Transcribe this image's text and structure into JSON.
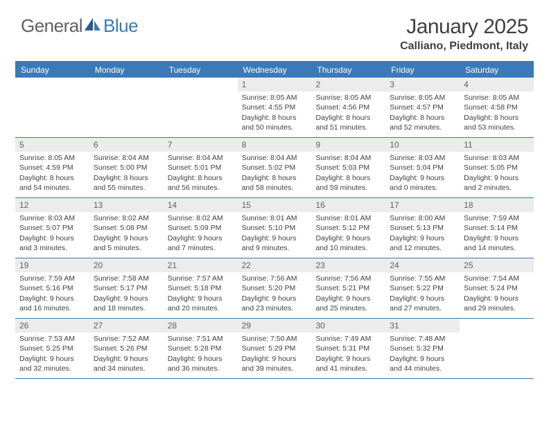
{
  "logo": {
    "text1": "General",
    "text2": "Blue"
  },
  "title": "January 2025",
  "location": "Calliano, Piedmont, Italy",
  "colors": {
    "accent": "#3a7ab8",
    "header_bg": "#3a7ab8",
    "header_text": "#ffffff",
    "daynum_bg": "#ececec",
    "text": "#404040",
    "logo_gray": "#606060",
    "logo_blue": "#3a7ab8",
    "background": "#ffffff"
  },
  "day_names": [
    "Sunday",
    "Monday",
    "Tuesday",
    "Wednesday",
    "Thursday",
    "Friday",
    "Saturday"
  ],
  "weeks": [
    [
      {
        "day": "",
        "sunrise": "",
        "sunset": "",
        "daylight1": "",
        "daylight2": ""
      },
      {
        "day": "",
        "sunrise": "",
        "sunset": "",
        "daylight1": "",
        "daylight2": ""
      },
      {
        "day": "",
        "sunrise": "",
        "sunset": "",
        "daylight1": "",
        "daylight2": ""
      },
      {
        "day": "1",
        "sunrise": "Sunrise: 8:05 AM",
        "sunset": "Sunset: 4:55 PM",
        "daylight1": "Daylight: 8 hours",
        "daylight2": "and 50 minutes."
      },
      {
        "day": "2",
        "sunrise": "Sunrise: 8:05 AM",
        "sunset": "Sunset: 4:56 PM",
        "daylight1": "Daylight: 8 hours",
        "daylight2": "and 51 minutes."
      },
      {
        "day": "3",
        "sunrise": "Sunrise: 8:05 AM",
        "sunset": "Sunset: 4:57 PM",
        "daylight1": "Daylight: 8 hours",
        "daylight2": "and 52 minutes."
      },
      {
        "day": "4",
        "sunrise": "Sunrise: 8:05 AM",
        "sunset": "Sunset: 4:58 PM",
        "daylight1": "Daylight: 8 hours",
        "daylight2": "and 53 minutes."
      }
    ],
    [
      {
        "day": "5",
        "sunrise": "Sunrise: 8:05 AM",
        "sunset": "Sunset: 4:59 PM",
        "daylight1": "Daylight: 8 hours",
        "daylight2": "and 54 minutes."
      },
      {
        "day": "6",
        "sunrise": "Sunrise: 8:04 AM",
        "sunset": "Sunset: 5:00 PM",
        "daylight1": "Daylight: 8 hours",
        "daylight2": "and 55 minutes."
      },
      {
        "day": "7",
        "sunrise": "Sunrise: 8:04 AM",
        "sunset": "Sunset: 5:01 PM",
        "daylight1": "Daylight: 8 hours",
        "daylight2": "and 56 minutes."
      },
      {
        "day": "8",
        "sunrise": "Sunrise: 8:04 AM",
        "sunset": "Sunset: 5:02 PM",
        "daylight1": "Daylight: 8 hours",
        "daylight2": "and 58 minutes."
      },
      {
        "day": "9",
        "sunrise": "Sunrise: 8:04 AM",
        "sunset": "Sunset: 5:03 PM",
        "daylight1": "Daylight: 8 hours",
        "daylight2": "and 59 minutes."
      },
      {
        "day": "10",
        "sunrise": "Sunrise: 8:03 AM",
        "sunset": "Sunset: 5:04 PM",
        "daylight1": "Daylight: 9 hours",
        "daylight2": "and 0 minutes."
      },
      {
        "day": "11",
        "sunrise": "Sunrise: 8:03 AM",
        "sunset": "Sunset: 5:05 PM",
        "daylight1": "Daylight: 9 hours",
        "daylight2": "and 2 minutes."
      }
    ],
    [
      {
        "day": "12",
        "sunrise": "Sunrise: 8:03 AM",
        "sunset": "Sunset: 5:07 PM",
        "daylight1": "Daylight: 9 hours",
        "daylight2": "and 3 minutes."
      },
      {
        "day": "13",
        "sunrise": "Sunrise: 8:02 AM",
        "sunset": "Sunset: 5:08 PM",
        "daylight1": "Daylight: 9 hours",
        "daylight2": "and 5 minutes."
      },
      {
        "day": "14",
        "sunrise": "Sunrise: 8:02 AM",
        "sunset": "Sunset: 5:09 PM",
        "daylight1": "Daylight: 9 hours",
        "daylight2": "and 7 minutes."
      },
      {
        "day": "15",
        "sunrise": "Sunrise: 8:01 AM",
        "sunset": "Sunset: 5:10 PM",
        "daylight1": "Daylight: 9 hours",
        "daylight2": "and 9 minutes."
      },
      {
        "day": "16",
        "sunrise": "Sunrise: 8:01 AM",
        "sunset": "Sunset: 5:12 PM",
        "daylight1": "Daylight: 9 hours",
        "daylight2": "and 10 minutes."
      },
      {
        "day": "17",
        "sunrise": "Sunrise: 8:00 AM",
        "sunset": "Sunset: 5:13 PM",
        "daylight1": "Daylight: 9 hours",
        "daylight2": "and 12 minutes."
      },
      {
        "day": "18",
        "sunrise": "Sunrise: 7:59 AM",
        "sunset": "Sunset: 5:14 PM",
        "daylight1": "Daylight: 9 hours",
        "daylight2": "and 14 minutes."
      }
    ],
    [
      {
        "day": "19",
        "sunrise": "Sunrise: 7:59 AM",
        "sunset": "Sunset: 5:16 PM",
        "daylight1": "Daylight: 9 hours",
        "daylight2": "and 16 minutes."
      },
      {
        "day": "20",
        "sunrise": "Sunrise: 7:58 AM",
        "sunset": "Sunset: 5:17 PM",
        "daylight1": "Daylight: 9 hours",
        "daylight2": "and 18 minutes."
      },
      {
        "day": "21",
        "sunrise": "Sunrise: 7:57 AM",
        "sunset": "Sunset: 5:18 PM",
        "daylight1": "Daylight: 9 hours",
        "daylight2": "and 20 minutes."
      },
      {
        "day": "22",
        "sunrise": "Sunrise: 7:56 AM",
        "sunset": "Sunset: 5:20 PM",
        "daylight1": "Daylight: 9 hours",
        "daylight2": "and 23 minutes."
      },
      {
        "day": "23",
        "sunrise": "Sunrise: 7:56 AM",
        "sunset": "Sunset: 5:21 PM",
        "daylight1": "Daylight: 9 hours",
        "daylight2": "and 25 minutes."
      },
      {
        "day": "24",
        "sunrise": "Sunrise: 7:55 AM",
        "sunset": "Sunset: 5:22 PM",
        "daylight1": "Daylight: 9 hours",
        "daylight2": "and 27 minutes."
      },
      {
        "day": "25",
        "sunrise": "Sunrise: 7:54 AM",
        "sunset": "Sunset: 5:24 PM",
        "daylight1": "Daylight: 9 hours",
        "daylight2": "and 29 minutes."
      }
    ],
    [
      {
        "day": "26",
        "sunrise": "Sunrise: 7:53 AM",
        "sunset": "Sunset: 5:25 PM",
        "daylight1": "Daylight: 9 hours",
        "daylight2": "and 32 minutes."
      },
      {
        "day": "27",
        "sunrise": "Sunrise: 7:52 AM",
        "sunset": "Sunset: 5:26 PM",
        "daylight1": "Daylight: 9 hours",
        "daylight2": "and 34 minutes."
      },
      {
        "day": "28",
        "sunrise": "Sunrise: 7:51 AM",
        "sunset": "Sunset: 5:28 PM",
        "daylight1": "Daylight: 9 hours",
        "daylight2": "and 36 minutes."
      },
      {
        "day": "29",
        "sunrise": "Sunrise: 7:50 AM",
        "sunset": "Sunset: 5:29 PM",
        "daylight1": "Daylight: 9 hours",
        "daylight2": "and 39 minutes."
      },
      {
        "day": "30",
        "sunrise": "Sunrise: 7:49 AM",
        "sunset": "Sunset: 5:31 PM",
        "daylight1": "Daylight: 9 hours",
        "daylight2": "and 41 minutes."
      },
      {
        "day": "31",
        "sunrise": "Sunrise: 7:48 AM",
        "sunset": "Sunset: 5:32 PM",
        "daylight1": "Daylight: 9 hours",
        "daylight2": "and 44 minutes."
      },
      {
        "day": "",
        "sunrise": "",
        "sunset": "",
        "daylight1": "",
        "daylight2": ""
      }
    ]
  ]
}
